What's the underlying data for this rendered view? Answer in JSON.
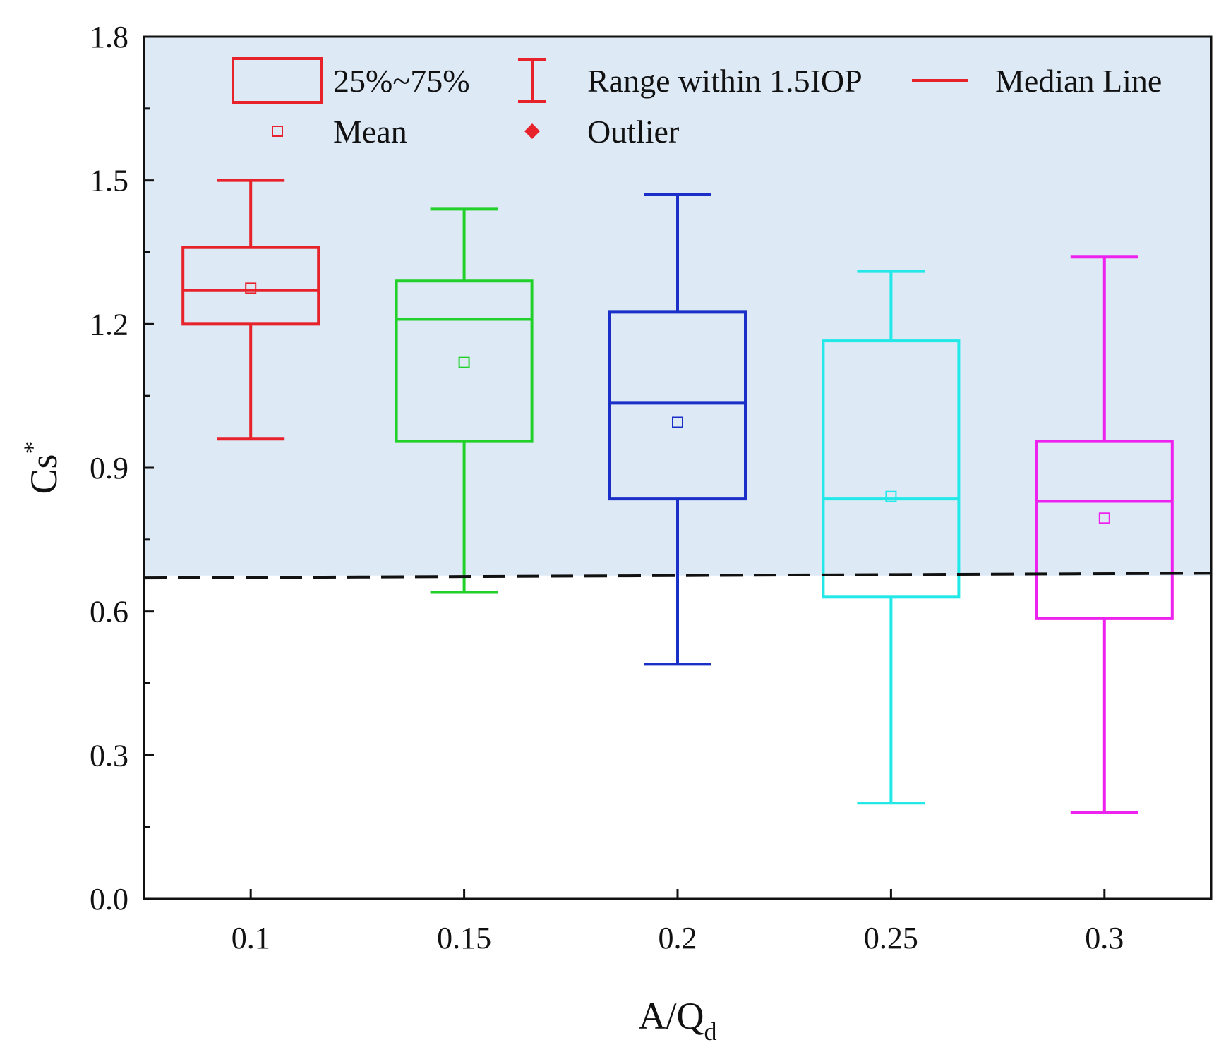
{
  "chart_data": {
    "type": "box",
    "xlabel": "A/Q",
    "xlabel_subscript": "d",
    "ylabel": "Cs",
    "ylabel_superscript": "*",
    "ylim": [
      0,
      1.8
    ],
    "y_ticks": [
      "0.0",
      "0.3",
      "0.6",
      "0.9",
      "1.2",
      "1.5",
      "1.8"
    ],
    "y_tick_values": [
      0,
      0.3,
      0.6,
      0.9,
      1.2,
      1.5,
      1.8
    ],
    "categories": [
      "0.1",
      "0.15",
      "0.2",
      "0.25",
      "0.3"
    ],
    "boxes": [
      {
        "category": "0.1",
        "whisker_low": 0.96,
        "q1": 1.2,
        "median": 1.27,
        "q3": 1.36,
        "whisker_high": 1.5,
        "mean": 1.275,
        "color": "#e8222a"
      },
      {
        "category": "0.15",
        "whisker_low": 0.64,
        "q1": 0.955,
        "median": 1.21,
        "q3": 1.29,
        "whisker_high": 1.44,
        "mean": 1.12,
        "color": "#22d02a"
      },
      {
        "category": "0.2",
        "whisker_low": 0.49,
        "q1": 0.835,
        "median": 1.035,
        "q3": 1.225,
        "whisker_high": 1.47,
        "mean": 0.995,
        "color": "#1a2fc8"
      },
      {
        "category": "0.25",
        "whisker_low": 0.2,
        "q1": 0.63,
        "median": 0.835,
        "q3": 1.165,
        "whisker_high": 1.31,
        "mean": 0.84,
        "color": "#22e8e8"
      },
      {
        "category": "0.3",
        "whisker_low": 0.18,
        "q1": 0.585,
        "median": 0.83,
        "q3": 0.955,
        "whisker_high": 1.34,
        "mean": 0.795,
        "color": "#ee22ee"
      }
    ],
    "threshold_line": {
      "y_start": 0.67,
      "y_end": 0.68,
      "style": "dashed",
      "color": "#111111"
    },
    "shaded_region_color": "#dde9f5",
    "legend": {
      "placement": "top",
      "items": [
        {
          "label": "25%~75%",
          "symbol": "box"
        },
        {
          "label": "Range within 1.5IOP",
          "symbol": "whisker"
        },
        {
          "label": "Median Line",
          "symbol": "line"
        },
        {
          "label": "Mean",
          "symbol": "square"
        },
        {
          "label": "Outlier",
          "symbol": "diamond"
        }
      ],
      "color": "#e8222a"
    }
  }
}
